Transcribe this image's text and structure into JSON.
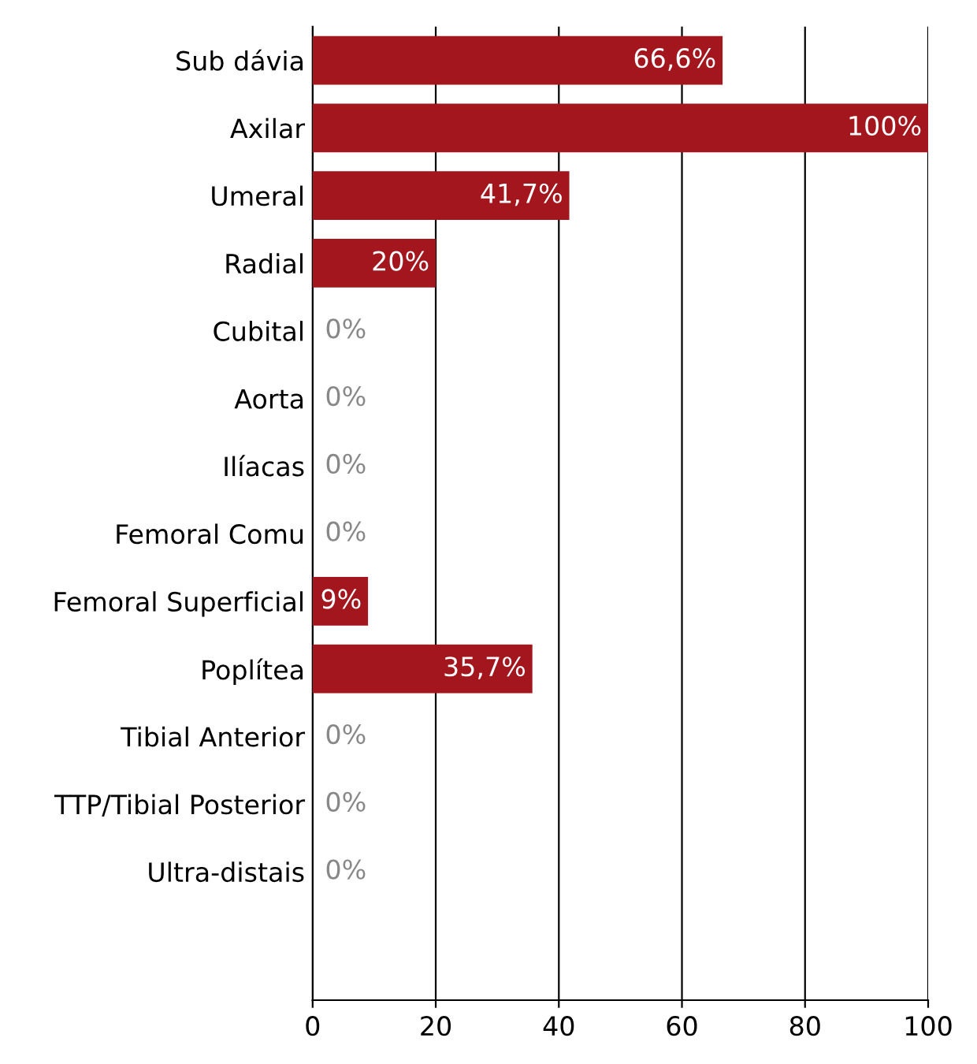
{
  "chart_data": {
    "type": "bar",
    "orientation": "horizontal",
    "categories": [
      "Sub dávia",
      "Axilar",
      "Umeral",
      "Radial",
      "Cubital",
      "Aorta",
      "Ilíacas",
      "Femoral Comu",
      "Femoral Superficial",
      "Poplítea",
      "Tibial Anterior",
      "TTP/Tibial Posterior",
      "Ultra-distais"
    ],
    "values": [
      66.6,
      100,
      41.7,
      20,
      0,
      0,
      0,
      0,
      9,
      35.7,
      0,
      0,
      0
    ],
    "value_labels": [
      "66,6%",
      "100%",
      "41,7%",
      "20%",
      "0%",
      "0%",
      "0%",
      "0%",
      "9%",
      "35,7%",
      "0%",
      "0%",
      "0%"
    ],
    "color": "#a3161e",
    "xlim": [
      0,
      100
    ],
    "xticks": [
      0,
      20,
      40,
      60,
      80,
      100
    ],
    "grid": "x"
  }
}
